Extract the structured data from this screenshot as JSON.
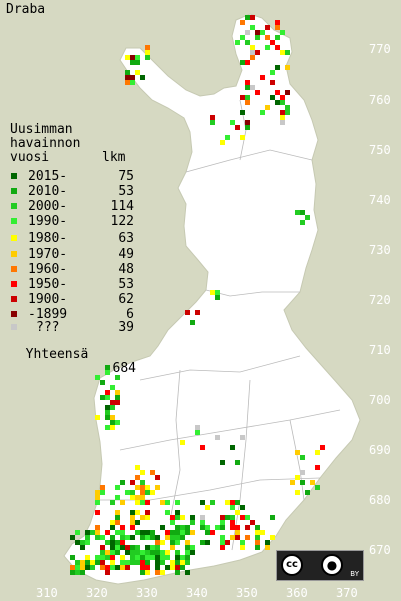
{
  "title": "Draba",
  "legend": {
    "heading": [
      "Uusimman",
      "havainnon",
      "vuosi"
    ],
    "count_header": "lkm",
    "rows": [
      {
        "label": "2015-",
        "count": "75",
        "color": "#006600"
      },
      {
        "label": "2010-",
        "count": "53",
        "color": "#11aa11"
      },
      {
        "label": "2000-",
        "count": "114",
        "color": "#22cc22"
      },
      {
        "label": "1990-",
        "count": "122",
        "color": "#33ee33"
      },
      {
        "label": "1980-",
        "count": "63",
        "color": "#ffff00"
      },
      {
        "label": "1970-",
        "count": "49",
        "color": "#ffcc00"
      },
      {
        "label": "1960-",
        "count": "48",
        "color": "#ff7700"
      },
      {
        "label": "1950-",
        "count": "53",
        "color": "#ff0000"
      },
      {
        "label": "1900-",
        "count": "62",
        "color": "#cc0000"
      },
      {
        "label": "-1899",
        "count": "6",
        "color": "#880000"
      },
      {
        "label": "???",
        "count": "39",
        "color": "#c8c8c8"
      }
    ],
    "total_label": "Yhteensä",
    "total_count": "684"
  },
  "grid_labels": {
    "north": [
      "770",
      "760",
      "750",
      "740",
      "730",
      "720",
      "710",
      "700",
      "690",
      "680",
      "670"
    ],
    "east": [
      "310",
      "320",
      "330",
      "340",
      "350",
      "360",
      "370"
    ]
  },
  "license": {
    "badge": "cc",
    "attribution": "BY",
    "icons": [
      "cc-icon",
      "by-person-icon"
    ]
  },
  "colors": {
    "land": "#ffffff",
    "sea": "#d6d9c2",
    "borders": "#bbbbbb"
  }
}
